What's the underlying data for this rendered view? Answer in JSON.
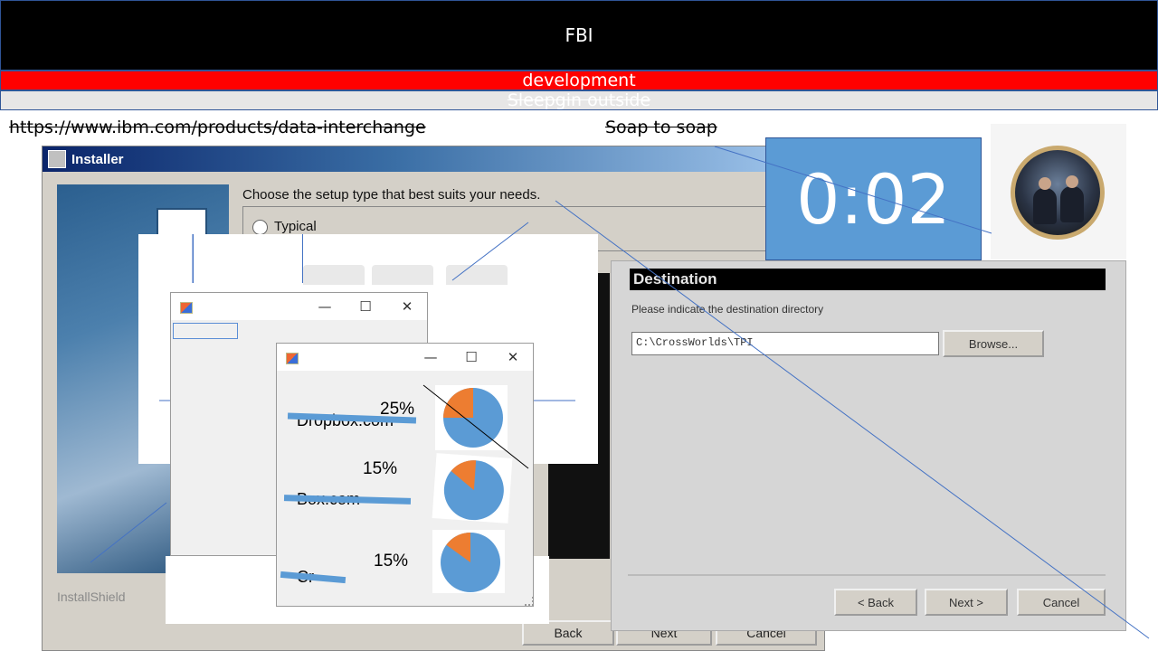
{
  "banner": {
    "title": "FBI",
    "subtitle_red": "development",
    "subtitle_grey": "Sleepgin outside"
  },
  "struck_links": {
    "url": "https://www.ibm.com/products/data-interchange",
    "note": "Soap to soap"
  },
  "installer": {
    "title": "Installer",
    "prompt": "Choose the setup type that best suits your needs.",
    "option_typical": "Typical",
    "footer": "InstallShield",
    "buttons": [
      "Back",
      "Next",
      "Cancel"
    ]
  },
  "destination": {
    "header": "Destination",
    "label": "Please indicate the destination directory",
    "path": "C:\\CrossWorlds\\TPI",
    "browse": "Browse...",
    "buttons": [
      "< Back",
      "Next >",
      "Cancel"
    ]
  },
  "win1": {
    "controls": {
      "minimize": "—",
      "maximize": "☐",
      "close": "✕"
    }
  },
  "win2": {
    "controls": {
      "minimize": "—",
      "maximize": "☐",
      "close": "✕"
    },
    "rows": [
      {
        "label": "Dropbox.com",
        "percent": "25%",
        "share": 0.25
      },
      {
        "label": "Box.com",
        "percent": "15%",
        "share": 0.15
      },
      {
        "label": "Cr",
        "percent": "15%",
        "share": 0.15
      }
    ]
  },
  "timer": {
    "display": "0:02"
  },
  "colors": {
    "accent_blue": "#5b9bd5",
    "pie_main": "#5b9bd5",
    "pie_slice": "#ed7d31",
    "banner_red": "#ff0000"
  }
}
